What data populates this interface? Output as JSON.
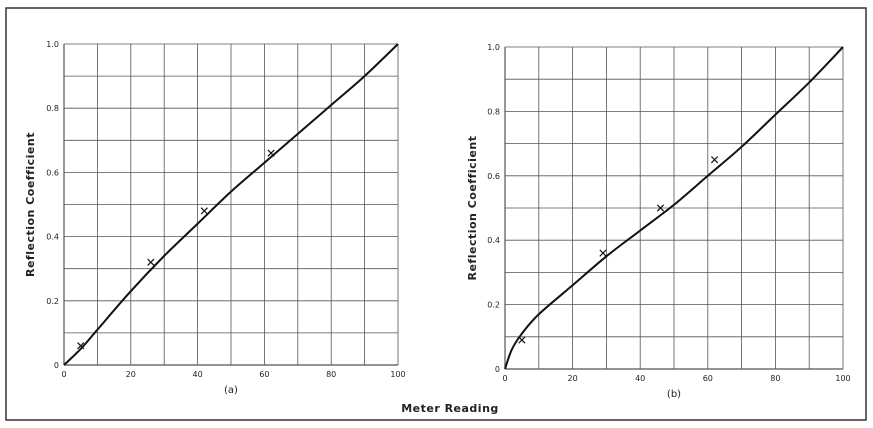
{
  "shared_xlabel": "Meter Reading",
  "chart_data": [
    {
      "type": "line",
      "panel_label": "(a)",
      "xlabel": "",
      "ylabel": "Reflection Coefficient",
      "xlim": [
        0,
        100
      ],
      "ylim": [
        0,
        1.0
      ],
      "x_ticks": [
        0,
        20,
        40,
        60,
        80,
        100
      ],
      "x_tick_labels": [
        "0",
        "20",
        "40",
        "60",
        "80",
        "100"
      ],
      "y_ticks": [
        0,
        0.2,
        0.4,
        0.6,
        0.8,
        1.0
      ],
      "y_tick_labels": [
        "0",
        "0.2",
        "0.4",
        "0.6",
        "0.8",
        "1.0"
      ],
      "grid": true,
      "series": [
        {
          "style": "curve",
          "x": [
            0,
            5,
            10,
            20,
            30,
            40,
            50,
            60,
            70,
            80,
            90,
            100
          ],
          "y": [
            0,
            0.05,
            0.11,
            0.23,
            0.34,
            0.44,
            0.54,
            0.63,
            0.72,
            0.81,
            0.9,
            1.0
          ]
        },
        {
          "style": "markers",
          "marker": "x",
          "x": [
            5,
            26,
            42,
            62
          ],
          "y": [
            0.06,
            0.32,
            0.48,
            0.66
          ]
        }
      ]
    },
    {
      "type": "line",
      "panel_label": "(b)",
      "xlabel": "",
      "ylabel": "Reflection Coefficient",
      "xlim": [
        0,
        100
      ],
      "ylim": [
        0,
        1.0
      ],
      "x_ticks": [
        0,
        20,
        40,
        60,
        80,
        100
      ],
      "x_tick_labels": [
        "0",
        "20",
        "40",
        "60",
        "80",
        "100"
      ],
      "y_ticks": [
        0,
        0.2,
        0.4,
        0.6,
        0.8,
        1.0
      ],
      "y_tick_labels": [
        "0",
        "0.2",
        "0.4",
        "0.6",
        "0.8",
        "1.0"
      ],
      "grid": true,
      "series": [
        {
          "style": "curve",
          "x": [
            0,
            2,
            5,
            10,
            20,
            30,
            40,
            50,
            60,
            70,
            80,
            90,
            100
          ],
          "y": [
            0,
            0.06,
            0.11,
            0.17,
            0.26,
            0.35,
            0.43,
            0.51,
            0.6,
            0.69,
            0.79,
            0.89,
            1.0
          ]
        },
        {
          "style": "markers",
          "marker": "x",
          "x": [
            5,
            29,
            46,
            62
          ],
          "y": [
            0.09,
            0.36,
            0.5,
            0.65
          ]
        }
      ]
    }
  ]
}
